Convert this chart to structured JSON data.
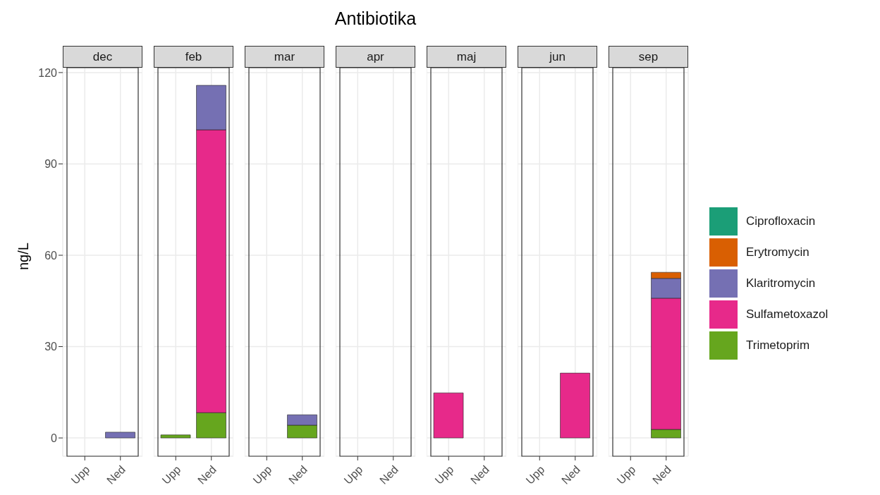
{
  "chart_data": [
    {
      "type": "bar",
      "subtitle": "dec",
      "ylabel": "ng/L",
      "categories": [
        "Upp",
        "Ned"
      ],
      "stacked": true,
      "ylim": [
        -6,
        121.6
      ],
      "yticks": [
        0,
        30,
        60,
        90,
        120
      ],
      "grid": true,
      "series": [
        {
          "color": "#66a61e",
          "values": [
            null,
            null
          ]
        },
        {
          "color": "#e7298a",
          "values": [
            null,
            null
          ]
        },
        {
          "color": "#7570b3",
          "values": [
            null,
            1.9
          ]
        },
        {
          "color": "#d95f02",
          "values": [
            null,
            null
          ]
        },
        {
          "color": "#1b9e77",
          "values": [
            null,
            null
          ]
        }
      ]
    },
    {
      "type": "bar",
      "subtitle": "feb",
      "categories": [
        "Upp",
        "Ned"
      ],
      "stacked": true,
      "ylim": [
        -6,
        121.6
      ],
      "yticks": [
        0,
        30,
        60,
        90,
        120
      ],
      "grid": true,
      "tick_labels": "x",
      "series": [
        {
          "color": "#66a61e",
          "values": [
            1.0,
            8.3
          ]
        },
        {
          "color": "#e7298a",
          "values": [
            null,
            92.9
          ]
        },
        {
          "color": "#7570b3",
          "values": [
            null,
            14.6
          ]
        },
        {
          "color": "#d95f02",
          "values": [
            null,
            null
          ]
        },
        {
          "color": "#1b9e77",
          "values": [
            null,
            null
          ]
        }
      ]
    },
    {
      "type": "bar",
      "subtitle": "mar",
      "categories": [
        "Upp",
        "Ned"
      ],
      "stacked": true,
      "ylim": [
        -6,
        121.6
      ],
      "yticks": [
        0,
        30,
        60,
        90,
        120
      ],
      "grid": true,
      "tick_labels": "x",
      "series": [
        {
          "color": "#66a61e",
          "values": [
            null,
            4.2
          ]
        },
        {
          "color": "#e7298a",
          "values": [
            null,
            null
          ]
        },
        {
          "color": "#7570b3",
          "values": [
            null,
            3.4
          ]
        },
        {
          "color": "#d95f02",
          "values": [
            null,
            null
          ]
        },
        {
          "color": "#1b9e77",
          "values": [
            null,
            null
          ]
        }
      ]
    },
    {
      "type": "bar",
      "title": "Antibiotika",
      "subtitle": "apr",
      "categories": [
        "Upp",
        "Ned"
      ],
      "stacked": true,
      "ylim": [
        -6,
        121.6
      ],
      "yticks": [
        0,
        30,
        60,
        90,
        120
      ],
      "grid": true,
      "tick_labels": "x",
      "series": [
        {
          "color": "#66a61e",
          "values": [
            null,
            null
          ]
        },
        {
          "color": "#e7298a",
          "values": [
            null,
            null
          ]
        },
        {
          "color": "#7570b3",
          "values": [
            null,
            null
          ]
        },
        {
          "color": "#d95f02",
          "values": [
            null,
            null
          ]
        },
        {
          "color": "#1b9e77",
          "values": [
            null,
            null
          ]
        }
      ]
    },
    {
      "type": "bar",
      "subtitle": "maj",
      "categories": [
        "Upp",
        "Ned"
      ],
      "stacked": true,
      "ylim": [
        -6,
        121.6
      ],
      "yticks": [
        0,
        30,
        60,
        90,
        120
      ],
      "grid": true,
      "tick_labels": "x",
      "series": [
        {
          "color": "#66a61e",
          "values": [
            null,
            null
          ]
        },
        {
          "color": "#e7298a",
          "values": [
            14.8,
            null
          ]
        },
        {
          "color": "#7570b3",
          "values": [
            null,
            null
          ]
        },
        {
          "color": "#d95f02",
          "values": [
            null,
            null
          ]
        },
        {
          "color": "#1b9e77",
          "values": [
            null,
            null
          ]
        }
      ]
    },
    {
      "type": "bar",
      "subtitle": "jun",
      "categories": [
        "Upp",
        "Ned"
      ],
      "stacked": true,
      "ylim": [
        -6,
        121.6
      ],
      "yticks": [
        0,
        30,
        60,
        90,
        120
      ],
      "grid": true,
      "tick_labels": "x",
      "series": [
        {
          "color": "#66a61e",
          "values": [
            null,
            null
          ]
        },
        {
          "color": "#e7298a",
          "values": [
            null,
            21.3
          ]
        },
        {
          "color": "#7570b3",
          "values": [
            null,
            null
          ]
        },
        {
          "color": "#d95f02",
          "values": [
            null,
            null
          ]
        },
        {
          "color": "#1b9e77",
          "values": [
            null,
            null
          ]
        }
      ]
    },
    {
      "type": "bar",
      "subtitle": "sep",
      "categories": [
        "Upp",
        "Ned"
      ],
      "stacked": true,
      "ylim": [
        -6,
        121.6
      ],
      "yticks": [
        0,
        30,
        60,
        90,
        120
      ],
      "grid": true,
      "tick_labels": "x",
      "legend": "right",
      "series": [
        {
          "name": "Trimetoprim",
          "color": "#66a61e",
          "values": [
            null,
            2.8
          ]
        },
        {
          "name": "Sulfametoxazol",
          "color": "#e7298a",
          "values": [
            null,
            43.1
          ]
        },
        {
          "name": "Klaritromycin",
          "color": "#7570b3",
          "values": [
            null,
            6.5
          ]
        },
        {
          "name": "Erytromycin",
          "color": "#d95f02",
          "values": [
            null,
            2.0
          ]
        },
        {
          "name": "Ciprofloxacin",
          "color": "#1b9e77",
          "values": [
            null,
            null
          ]
        }
      ]
    }
  ]
}
